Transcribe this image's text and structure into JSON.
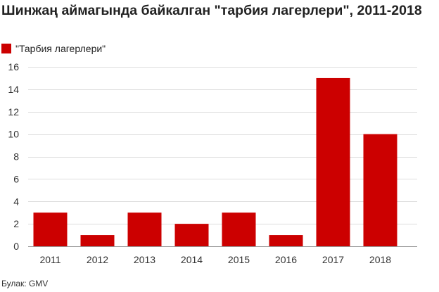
{
  "title": "Шинжаң аймагында байкалган \"тарбия лагерлери\", 2011-2018",
  "legend": {
    "label": "\"Тарбия лагерлери\"",
    "color": "#cc0000"
  },
  "source": "Булак: GMV",
  "chart_data": {
    "type": "bar",
    "categories": [
      "2011",
      "2012",
      "2013",
      "2014",
      "2015",
      "2016",
      "2017",
      "2018"
    ],
    "series": [
      {
        "name": "\"Тарбия лагерлери\"",
        "values": [
          3,
          1,
          3,
          2,
          3,
          1,
          15,
          10
        ],
        "color": "#cc0000"
      }
    ],
    "yticks": [
      0,
      2,
      4,
      6,
      8,
      10,
      12,
      14,
      16
    ],
    "ylim": [
      0,
      16
    ],
    "grid": true,
    "legend_position": "top-left"
  }
}
